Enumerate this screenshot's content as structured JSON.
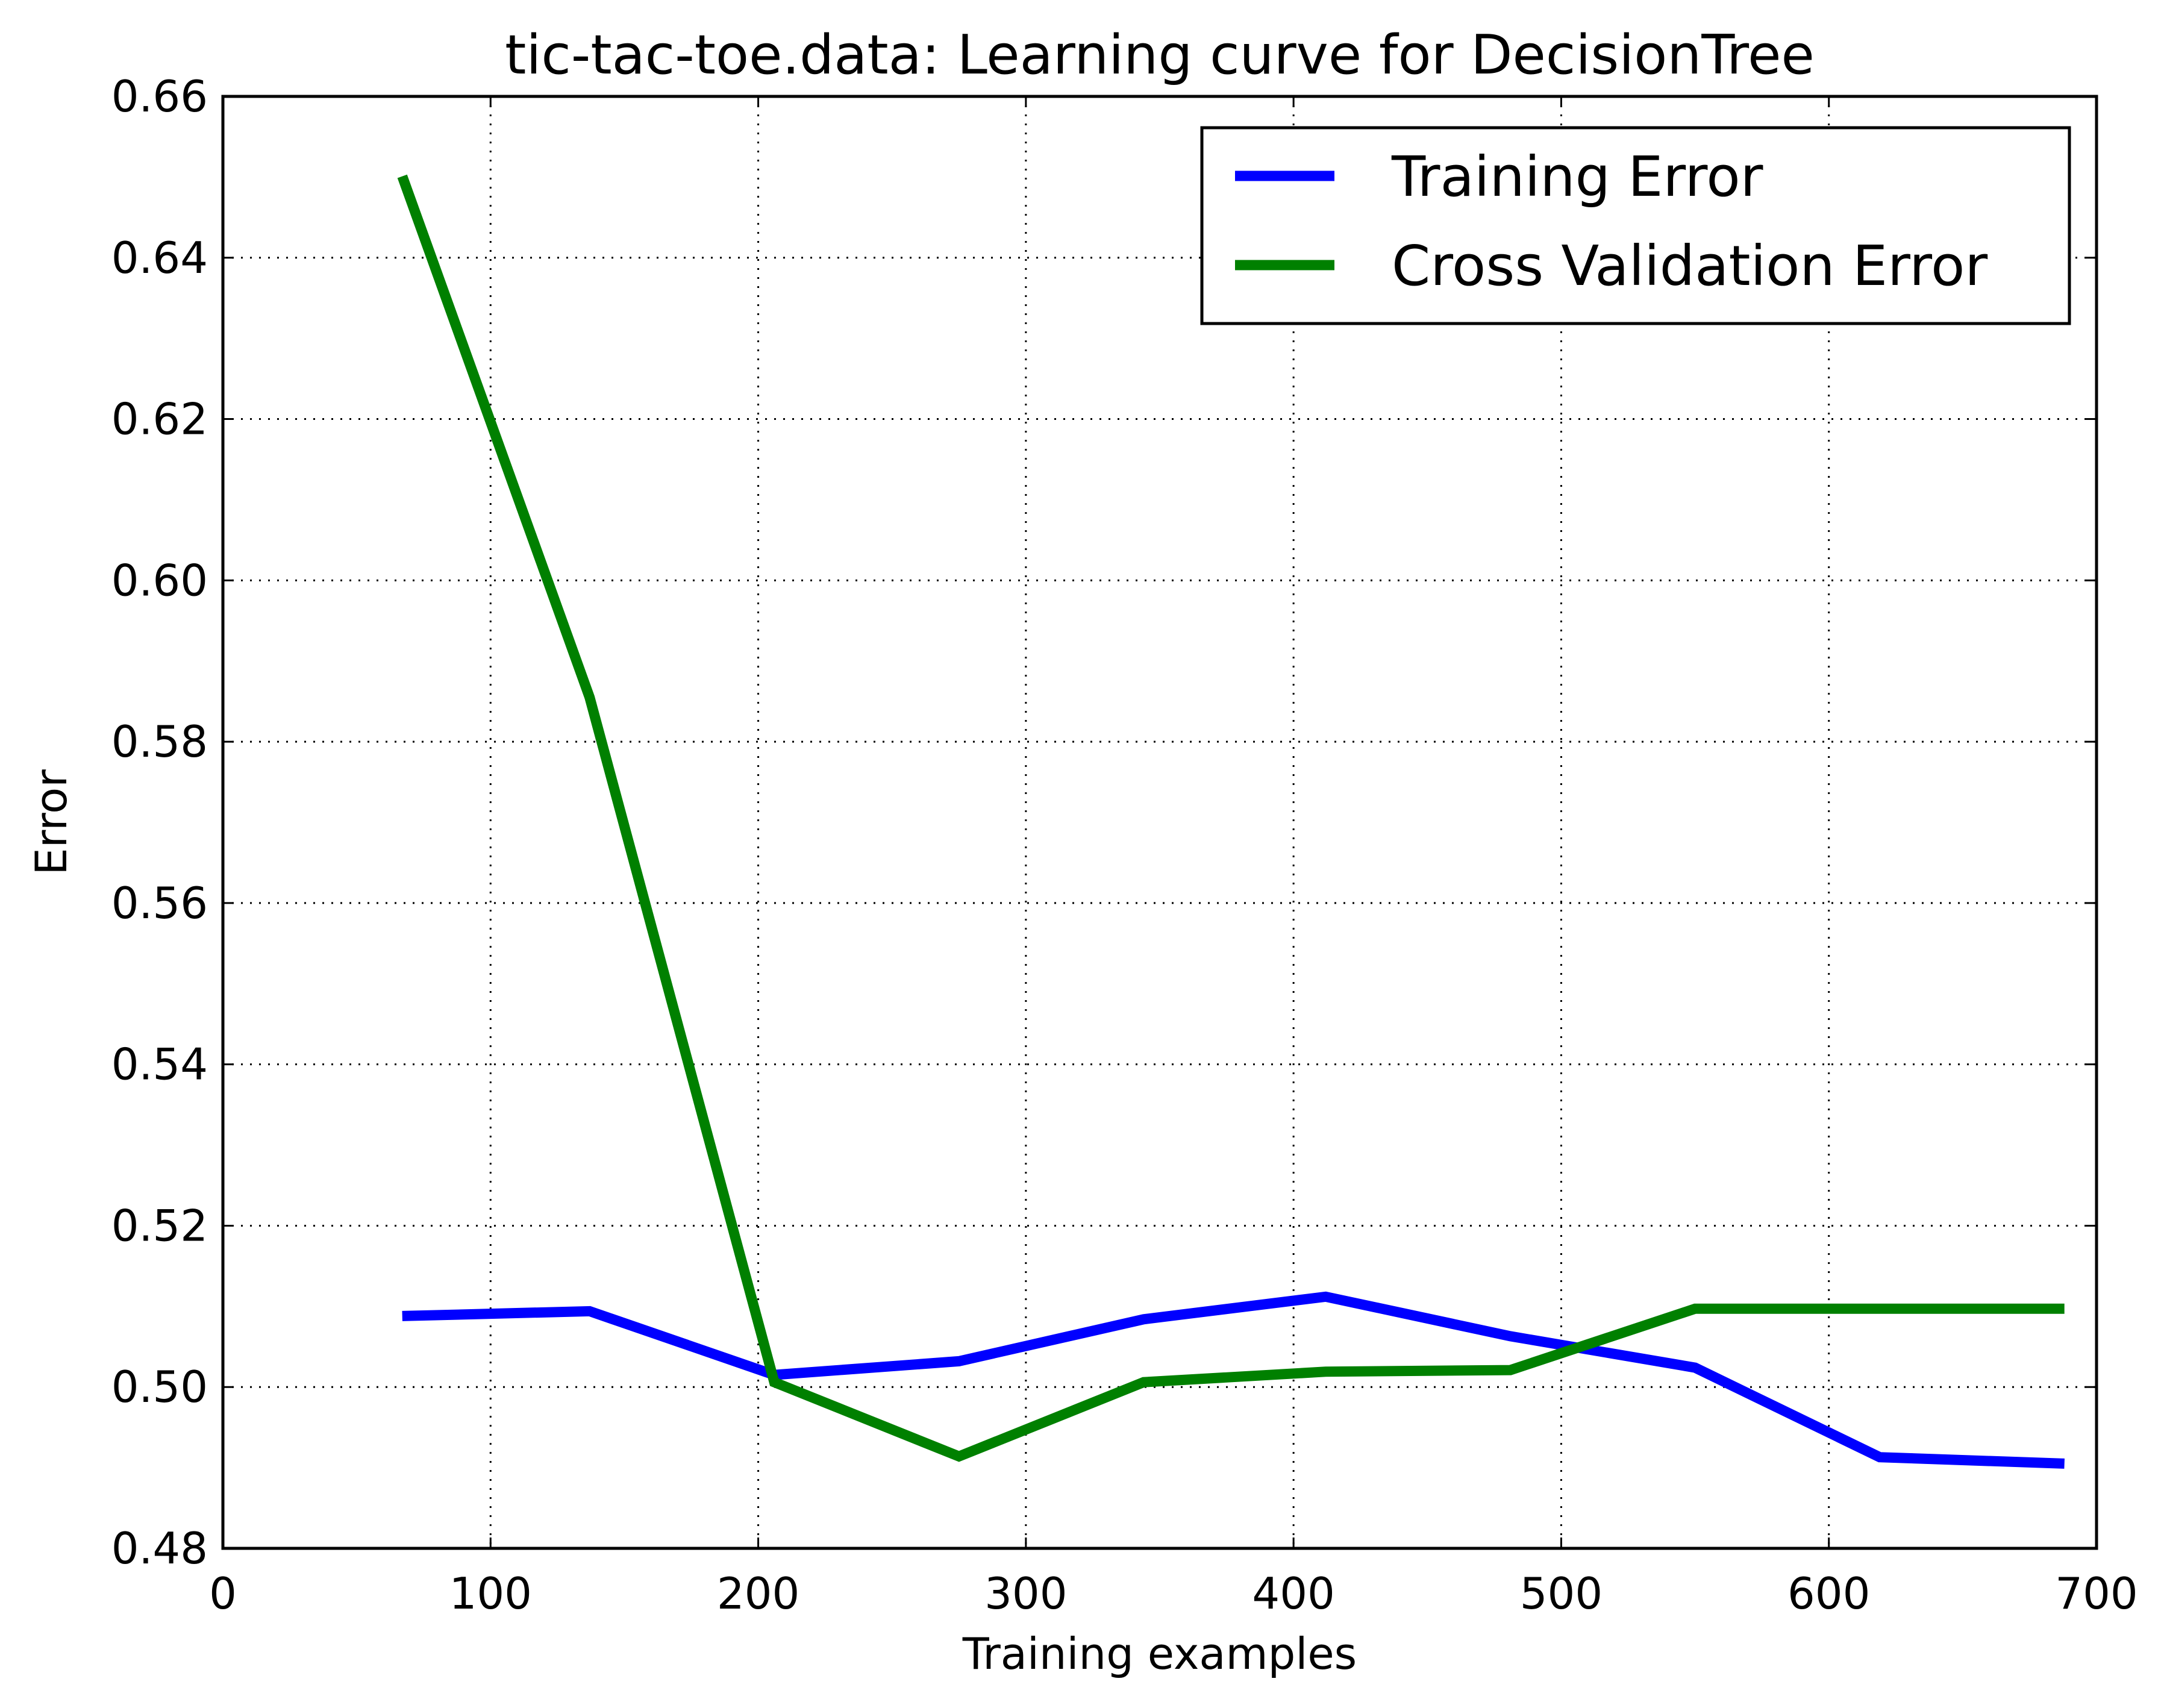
{
  "chart_data": {
    "type": "line",
    "title": "tic-tac-toe.data: Learning curve for DecisionTree",
    "xlabel": "Training examples",
    "ylabel": "Error",
    "xlim": [
      0,
      700
    ],
    "ylim": [
      0.48,
      0.66
    ],
    "xticks": [
      0,
      100,
      200,
      300,
      400,
      500,
      600,
      700
    ],
    "xtick_labels": [
      "0",
      "100",
      "200",
      "300",
      "400",
      "500",
      "600",
      "700"
    ],
    "yticks": [
      0.48,
      0.5,
      0.52,
      0.54,
      0.56,
      0.58,
      0.6,
      0.62,
      0.64,
      0.66
    ],
    "ytick_labels": [
      "0.48",
      "0.50",
      "0.52",
      "0.54",
      "0.56",
      "0.58",
      "0.60",
      "0.62",
      "0.64",
      "0.66"
    ],
    "grid": true,
    "legend_position": "upper-right",
    "series": [
      {
        "name": "Training Error",
        "color": "#0000ff",
        "x": [
          67,
          137,
          206,
          275,
          344,
          412,
          481,
          550,
          619,
          688
        ],
        "y": [
          0.5088,
          0.5094,
          0.5015,
          0.5032,
          0.5084,
          0.5112,
          0.5063,
          0.5024,
          0.4913,
          0.4905
        ]
      },
      {
        "name": "Cross Validation Error",
        "color": "#008000",
        "x": [
          67,
          137,
          206,
          275,
          344,
          412,
          481,
          550,
          619,
          688
        ],
        "y": [
          0.6501,
          0.5855,
          0.5006,
          0.4914,
          0.5006,
          0.5019,
          0.5021,
          0.5097,
          0.5097,
          0.5097
        ]
      }
    ]
  }
}
